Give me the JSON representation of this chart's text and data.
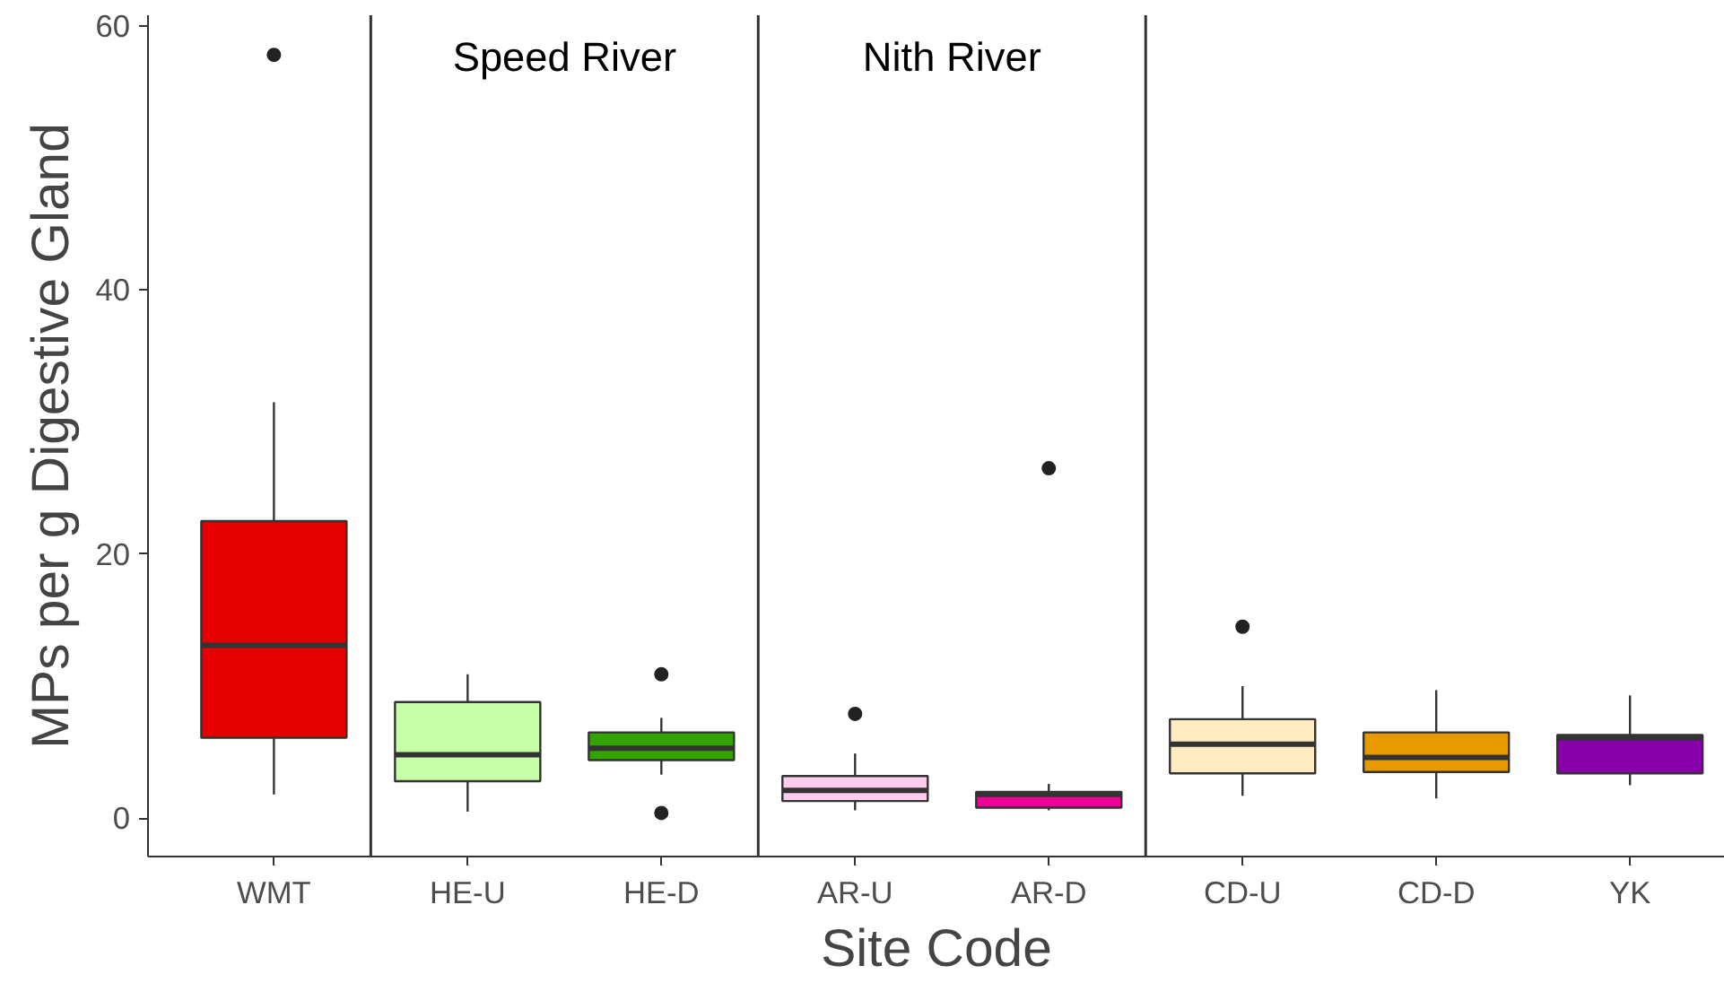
{
  "chart_data": {
    "type": "box",
    "xlabel": "Site Code",
    "ylabel": "MPs per g Digestive Gland",
    "categories": [
      "WMT",
      "HE-U",
      "HE-D",
      "AR-U",
      "AR-D",
      "CD-U",
      "CD-D",
      "YK"
    ],
    "colors": [
      "#e60000",
      "#c6ffa8",
      "#33a300",
      "#ffccee",
      "#ee0099",
      "#ffebc0",
      "#e69a00",
      "#8800aa"
    ],
    "boxes": [
      {
        "low": 1.8,
        "q1": 6.1,
        "median": 13.1,
        "q3": 22.5,
        "high": 31.5,
        "outliers": [
          57.8
        ]
      },
      {
        "low": 0.5,
        "q1": 2.8,
        "median": 4.8,
        "q3": 8.8,
        "high": 10.9
      },
      {
        "low": 3.3,
        "q1": 4.4,
        "median": 5.3,
        "q3": 6.5,
        "high": 7.6,
        "outliers": [
          10.9,
          0.4
        ]
      },
      {
        "low": 0.6,
        "q1": 1.3,
        "median": 2.1,
        "q3": 3.2,
        "high": 4.9,
        "outliers": [
          7.9
        ]
      },
      {
        "low": 0.6,
        "q1": 0.8,
        "median": 1.8,
        "q3": 2.0,
        "high": 2.6,
        "outliers": [
          26.5
        ]
      },
      {
        "low": 1.7,
        "q1": 3.4,
        "median": 5.6,
        "q3": 7.5,
        "high": 10.0,
        "outliers": [
          14.5
        ]
      },
      {
        "low": 1.5,
        "q1": 3.5,
        "median": 4.6,
        "q3": 6.5,
        "high": 9.7
      },
      {
        "low": 2.5,
        "q1": 3.4,
        "median": 6.1,
        "q3": 6.3,
        "high": 9.3
      }
    ],
    "ylim": [
      -2.9,
      60.8
    ],
    "yticks": [
      0,
      20,
      40,
      60
    ],
    "grid": false,
    "annotations": [
      "Speed River",
      "Nith River"
    ]
  }
}
